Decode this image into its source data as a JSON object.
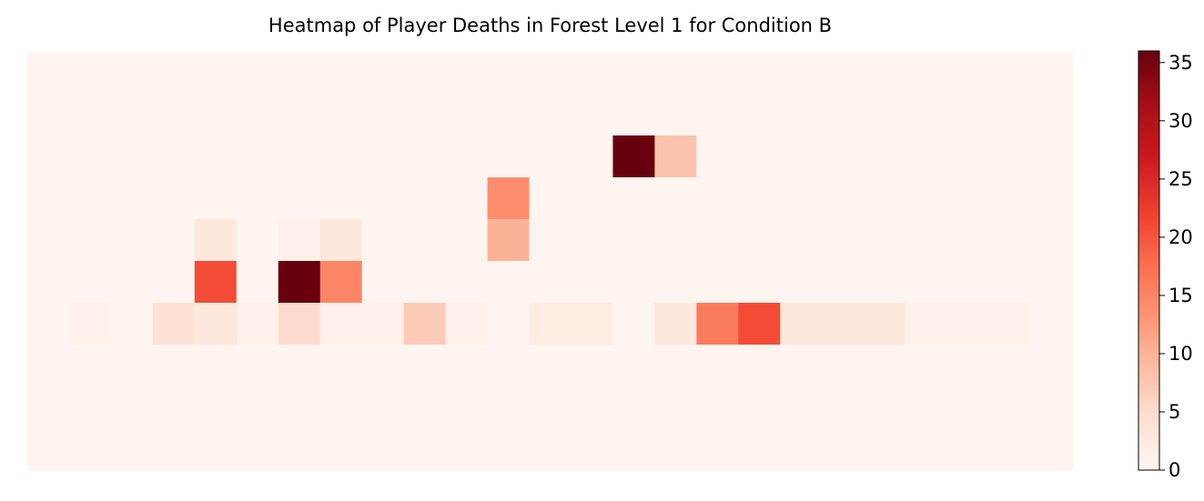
{
  "chart_data": {
    "type": "heatmap",
    "title": "Heatmap of Player Deaths in Forest Level 1 for Condition B",
    "xlabel": "",
    "ylabel": "",
    "rows": 10,
    "cols": 25,
    "colormap": "Reds",
    "vmin": 0,
    "vmax": 36,
    "colorbar_ticks": [
      0,
      5,
      10,
      15,
      20,
      25,
      30,
      35
    ],
    "values": [
      [
        0,
        0,
        0,
        0,
        0,
        0,
        0,
        0,
        0,
        0,
        0,
        0,
        0,
        0,
        0,
        0,
        0,
        0,
        0,
        0,
        0,
        0,
        0,
        0,
        0
      ],
      [
        0,
        0,
        0,
        0,
        0,
        0,
        0,
        0,
        0,
        0,
        0,
        0,
        0,
        0,
        0,
        0,
        0,
        0,
        0,
        0,
        0,
        0,
        0,
        0,
        0
      ],
      [
        0,
        0,
        0,
        0,
        0,
        0,
        0,
        0,
        0,
        0,
        0,
        0,
        0,
        0,
        36,
        8,
        0,
        0,
        0,
        0,
        0,
        0,
        0,
        0,
        0
      ],
      [
        0,
        0,
        0,
        0,
        0,
        0,
        0,
        0,
        0,
        0,
        0,
        14,
        0,
        0,
        0,
        0,
        0,
        0,
        0,
        0,
        0,
        0,
        0,
        0,
        0
      ],
      [
        0,
        0,
        0,
        0,
        3,
        0,
        1,
        3,
        0,
        0,
        0,
        10,
        0,
        0,
        0,
        0,
        0,
        0,
        0,
        0,
        0,
        0,
        0,
        0,
        0
      ],
      [
        0,
        0,
        0,
        0,
        21,
        0,
        36,
        15,
        0,
        0,
        0,
        0,
        0,
        0,
        0,
        0,
        0,
        0,
        0,
        0,
        0,
        0,
        0,
        0,
        0
      ],
      [
        0,
        1,
        0,
        4,
        3,
        1,
        5,
        1,
        1,
        7,
        1,
        0,
        2,
        2,
        0,
        3,
        16,
        21,
        3,
        3,
        3,
        1,
        1,
        1,
        0
      ],
      [
        0,
        0,
        0,
        0,
        0,
        0,
        0,
        0,
        0,
        0,
        0,
        0,
        0,
        0,
        0,
        0,
        0,
        0,
        0,
        0,
        0,
        0,
        0,
        0,
        0
      ],
      [
        0,
        0,
        0,
        0,
        0,
        0,
        0,
        0,
        0,
        0,
        0,
        0,
        0,
        0,
        0,
        0,
        0,
        0,
        0,
        0,
        0,
        0,
        0,
        0,
        0
      ],
      [
        0,
        0,
        0,
        0,
        0,
        0,
        0,
        0,
        0,
        0,
        0,
        0,
        0,
        0,
        0,
        0,
        0,
        0,
        0,
        0,
        0,
        0,
        0,
        0,
        0
      ]
    ]
  }
}
